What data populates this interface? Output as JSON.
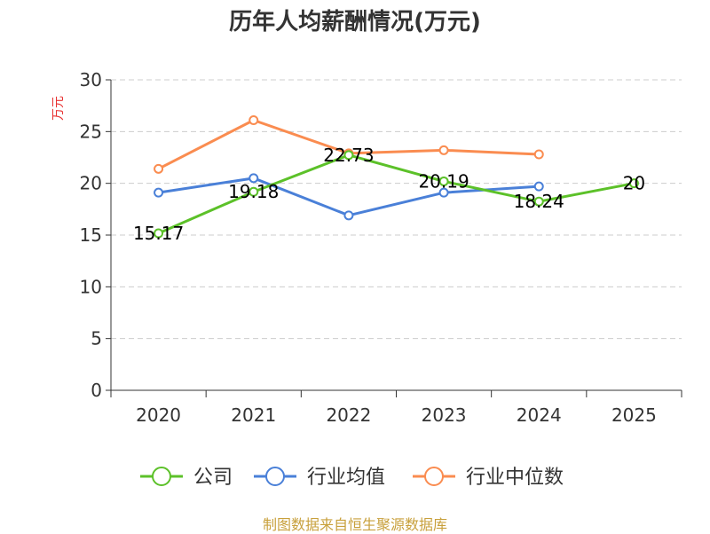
{
  "chart_data": {
    "type": "line",
    "title": "历年人均薪酬情况(万元)",
    "ylabel": "万元",
    "xlabel": "",
    "categories": [
      "2020",
      "2021",
      "2022",
      "2023",
      "2024",
      "2025"
    ],
    "ylim": [
      0,
      30
    ],
    "yticks": [
      0,
      5,
      10,
      15,
      20,
      25,
      30
    ],
    "grid": true,
    "legend_position": "bottom",
    "series": [
      {
        "name": "公司",
        "color": "#5cc129",
        "values": [
          15.17,
          19.18,
          22.73,
          20.19,
          18.24,
          20
        ],
        "labels": [
          "15.17",
          "19.18",
          "22.73",
          "20.19",
          "18.24",
          "20"
        ]
      },
      {
        "name": "行业均值",
        "color": "#4a80d8",
        "values": [
          19.1,
          20.5,
          16.9,
          19.1,
          19.7,
          null
        ]
      },
      {
        "name": "行业中位数",
        "color": "#fa8c50",
        "values": [
          21.4,
          26.1,
          22.9,
          23.2,
          22.8,
          null
        ]
      }
    ]
  },
  "source": "制图数据来自恒生聚源数据库"
}
